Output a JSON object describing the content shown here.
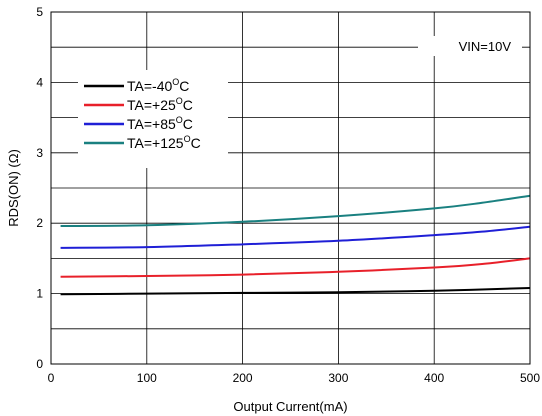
{
  "chart_data": {
    "type": "line",
    "title": "",
    "xlabel": "Output Current(mA)",
    "ylabel": "RDS(ON) (Ω)",
    "xlim": [
      0,
      500
    ],
    "ylim": [
      0,
      5
    ],
    "xticks": [
      0,
      100,
      200,
      300,
      400,
      500
    ],
    "yticks": [
      0,
      1,
      2,
      3,
      4,
      5
    ],
    "grid": true,
    "legend_position": "top-left",
    "annotation": "VIN=10V",
    "series": [
      {
        "name": "TA=-40°C",
        "label": "TA=-40",
        "label_unit": "C",
        "color": "#000000",
        "x": [
          10,
          100,
          200,
          300,
          400,
          500
        ],
        "y": [
          0.99,
          1.0,
          1.01,
          1.02,
          1.04,
          1.08
        ]
      },
      {
        "name": "TA=+25°C",
        "label": "TA=+25",
        "label_unit": "C",
        "color": "#e8202a",
        "x": [
          10,
          100,
          200,
          300,
          400,
          450,
          500
        ],
        "y": [
          1.24,
          1.25,
          1.27,
          1.31,
          1.37,
          1.42,
          1.5
        ]
      },
      {
        "name": "TA=+85°C",
        "label": "TA=+85",
        "label_unit": "C",
        "color": "#1f1fd6",
        "x": [
          10,
          100,
          200,
          300,
          400,
          450,
          500
        ],
        "y": [
          1.65,
          1.66,
          1.7,
          1.75,
          1.83,
          1.88,
          1.95
        ]
      },
      {
        "name": "TA=+125°C",
        "label": "TA=+125",
        "label_unit": "C",
        "color": "#1a8080",
        "x": [
          10,
          100,
          200,
          300,
          400,
          450,
          500
        ],
        "y": [
          1.96,
          1.97,
          2.02,
          2.1,
          2.21,
          2.29,
          2.39
        ]
      }
    ]
  }
}
